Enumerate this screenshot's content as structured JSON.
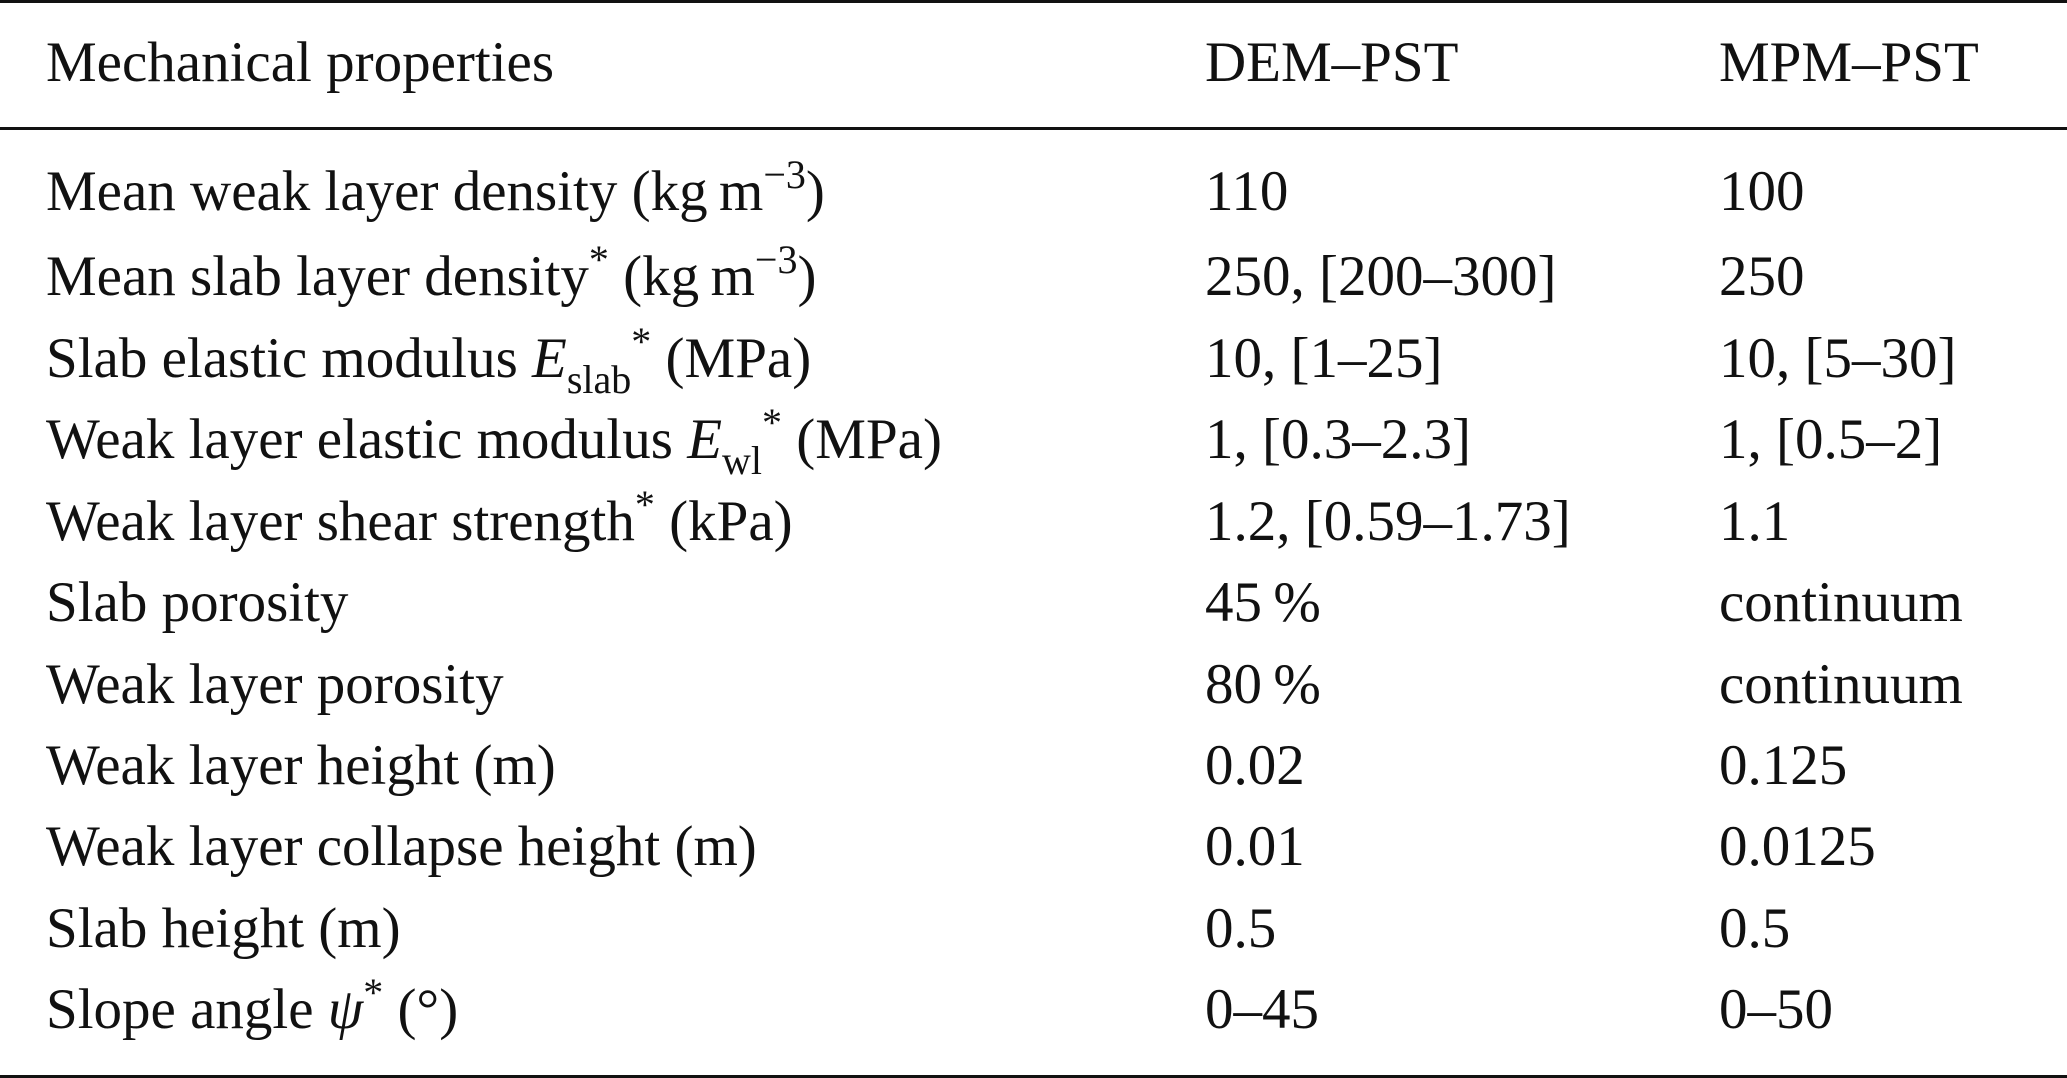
{
  "table": {
    "header": {
      "col1": "Mechanical properties",
      "col2": "DEM–PST",
      "col3": "MPM–PST"
    },
    "rows": [
      {
        "prop_pre": "Mean weak layer density (kg m",
        "prop_sup": "−3",
        "prop_post": ")",
        "dem": "110",
        "mpm": "100"
      },
      {
        "prop_pre": "Mean slab layer density",
        "prop_star": "*",
        "prop_mid": " (kg m",
        "prop_sup": "−3",
        "prop_post": ")",
        "dem": "250, [200–300]",
        "mpm": "250"
      },
      {
        "prop_pre": "Slab elastic modulus ",
        "prop_sym": "E",
        "prop_sub": "slab",
        "prop_star": "*",
        "prop_post": " (MPa)",
        "dem": "10, [1–25]",
        "mpm": "10, [5–30]"
      },
      {
        "prop_pre": "Weak layer elastic modulus ",
        "prop_sym": "E",
        "prop_sub": "wl",
        "prop_star": "*",
        "prop_post": " (MPa)",
        "dem": "1, [0.3–2.3]",
        "mpm": "1, [0.5–2]"
      },
      {
        "prop_pre": "Weak layer shear strength",
        "prop_star": "*",
        "prop_post": " (kPa)",
        "dem": "1.2, [0.59–1.73]",
        "mpm": "1.1"
      },
      {
        "prop_pre": "Slab porosity",
        "dem": "45 %",
        "mpm": "continuum"
      },
      {
        "prop_pre": "Weak layer porosity",
        "dem": "80 %",
        "mpm": "continuum"
      },
      {
        "prop_pre": "Weak layer height (m)",
        "dem": "0.02",
        "mpm": "0.125"
      },
      {
        "prop_pre": "Weak layer collapse height (m)",
        "dem": "0.01",
        "mpm": "0.0125"
      },
      {
        "prop_pre": "Slab height (m)",
        "dem": "0.5",
        "mpm": "0.5"
      },
      {
        "prop_pre": "Slope angle ",
        "prop_sym": "ψ",
        "prop_star": "*",
        "prop_post": " (°)",
        "dem": "0–45",
        "mpm": "0–50"
      }
    ]
  }
}
